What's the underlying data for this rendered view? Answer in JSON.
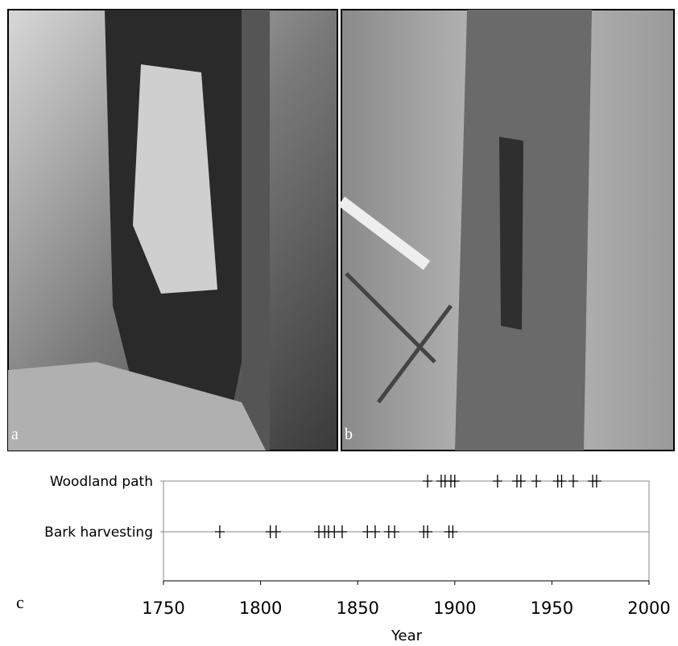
{
  "panels": [
    "a",
    "b",
    "c"
  ],
  "chart_data": {
    "type": "strip",
    "xlabel": "Year",
    "categories": [
      "Woodland path",
      "Bark harvesting"
    ],
    "values": [
      [
        1886,
        1893,
        1895,
        1898,
        1900,
        1922,
        1932,
        1934,
        1942,
        1953,
        1955,
        1961,
        1971,
        1973
      ],
      [
        1779,
        1805,
        1808,
        1830,
        1833,
        1835,
        1838,
        1842,
        1855,
        1859,
        1866,
        1869,
        1884,
        1886,
        1897,
        1899
      ]
    ],
    "color": "#000000",
    "xlim": [
      1750,
      2000
    ],
    "xticks": [
      1750,
      1800,
      1850,
      1900,
      1950,
      2000
    ]
  }
}
